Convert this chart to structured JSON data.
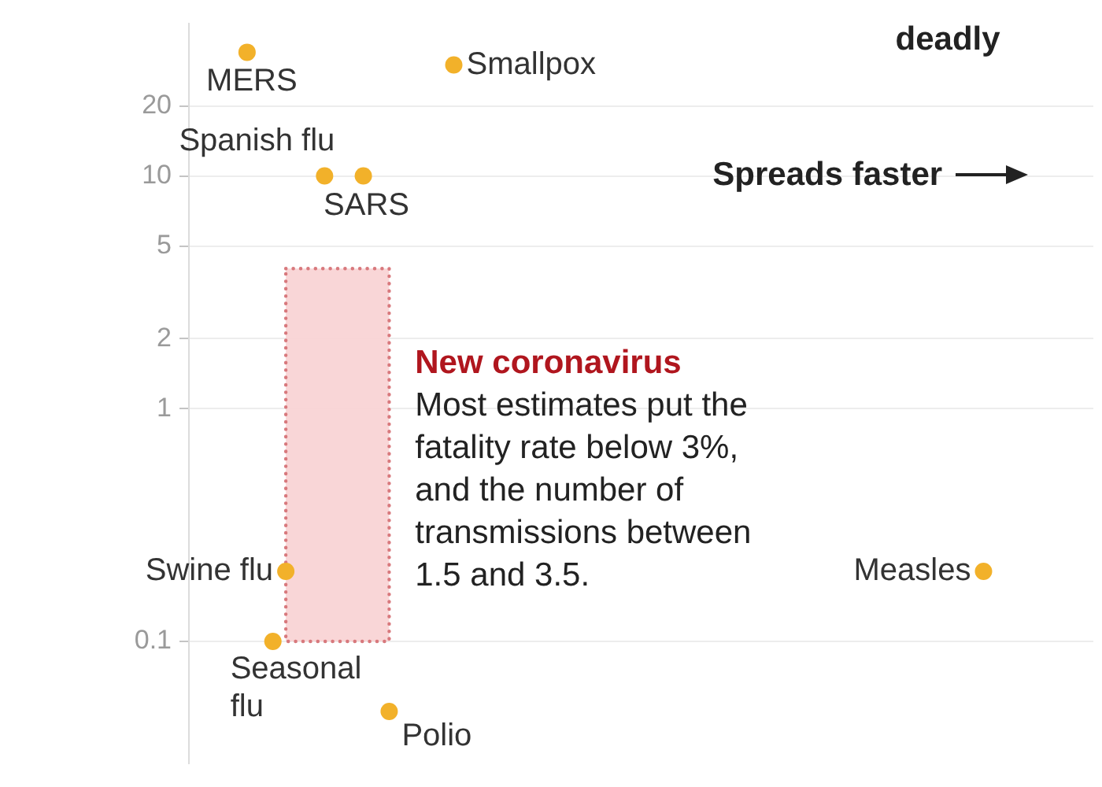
{
  "chart_data": {
    "type": "scatter",
    "categories": [
      null,
      null,
      null,
      null,
      null,
      null,
      null,
      null,
      null,
      null,
      null,
      null,
      null,
      null,
      null,
      null,
      null,
      null,
      null,
      null,
      null,
      null,
      null,
      null,
      null,
      null,
      null,
      null,
      null,
      null,
      null,
      null,
      null,
      null,
      null,
      null,
      null,
      null,
      null,
      null,
      null,
      null,
      null,
      null,
      null,
      null,
      null,
      null,
      null,
      null,
      null,
      null,
      null,
      null,
      null,
      null,
      null,
      null,
      null,
      null,
      null,
      null,
      null,
      null,
      null,
      null,
      null,
      null,
      null,
      null
    ],
    "series": [
      {
        "color": "#f2b12a",
        "values": [
          null,
          null,
          null,
          null,
          34,
          null,
          0.1,
          0.2,
          null,
          null,
          10,
          null,
          null,
          10,
          null,
          0.05,
          null,
          null,
          null,
          null,
          30,
          null,
          null,
          null,
          null,
          null,
          null,
          null,
          null,
          null,
          null,
          null,
          null,
          null,
          null,
          null,
          null,
          null,
          null,
          null,
          null,
          null,
          null,
          null,
          null,
          null,
          null,
          null,
          null,
          null,
          null,
          null,
          null,
          null,
          null,
          null,
          null,
          null,
          null,
          null,
          null,
          0.2,
          null,
          null,
          null,
          null,
          null,
          null,
          null,
          null
        ]
      },
      {
        "type": "area",
        "color": "#f8d2d3",
        "values": [
          null,
          null,
          null,
          null,
          null,
          null,
          null,
          null,
          null,
          null,
          null,
          null,
          null,
          null,
          null,
          null,
          null,
          null,
          null,
          null,
          null,
          null,
          null,
          null,
          null,
          null,
          null,
          null,
          null,
          null,
          null,
          null,
          null,
          null,
          null,
          null,
          null,
          null,
          null,
          null,
          null,
          null,
          null,
          null,
          null,
          null,
          null,
          null,
          null,
          null,
          null,
          null,
          null,
          null,
          null,
          null,
          null,
          null,
          null,
          null,
          null,
          null,
          null,
          null,
          null,
          null,
          null,
          null,
          null,
          null
        ],
        "lower": [
          null,
          null,
          null,
          null,
          null,
          null,
          null,
          0.1,
          0.1,
          0.1,
          0.1,
          0.1,
          0.1,
          0.1,
          0.1,
          0.1,
          null,
          null,
          null,
          null,
          null,
          null,
          null,
          null,
          null,
          null,
          null,
          null,
          null,
          null,
          null,
          null,
          null,
          null,
          null,
          null,
          null,
          null,
          null,
          null,
          null,
          null,
          null,
          null,
          null,
          null,
          null,
          null,
          null,
          null,
          null,
          null,
          null,
          null,
          null,
          null,
          null,
          null,
          null,
          null,
          null,
          null,
          null,
          null,
          null,
          null,
          null,
          null,
          null,
          null
        ],
        "upper": [
          null,
          null,
          null,
          null,
          null,
          null,
          null,
          4,
          4,
          4,
          4,
          4,
          4,
          4,
          4,
          4,
          null,
          null,
          null,
          null,
          null,
          null,
          null,
          null,
          null,
          null,
          null,
          null,
          null,
          null,
          null,
          null,
          null,
          null,
          null,
          null,
          null,
          null,
          null,
          null,
          null,
          null,
          null,
          null,
          null,
          null,
          null,
          null,
          null,
          null,
          null,
          null,
          null,
          null,
          null,
          null,
          null,
          null,
          null,
          null,
          null,
          null,
          null,
          null,
          null,
          null,
          null,
          null,
          null,
          null
        ]
      }
    ],
    "ylim": [
      0.03,
      45
    ],
    "yticks": [
      0.1,
      1,
      2,
      5,
      10,
      20
    ],
    "log": "y",
    "grid": "y",
    "tick_labels": "y",
    "legend": false,
    "marker": "circle",
    "annotations": [
      "MERS",
      "Seasonal flu",
      "Swine flu",
      "Spanish flu",
      "SARS",
      "Polio",
      "Smallpox",
      "Measles",
      "deadly",
      "Spreads faster",
      "New coronavirus",
      "Most estimates put the fatality rate below 3%, and the number of transmissions between 1.5 and 3.5."
    ]
  }
}
